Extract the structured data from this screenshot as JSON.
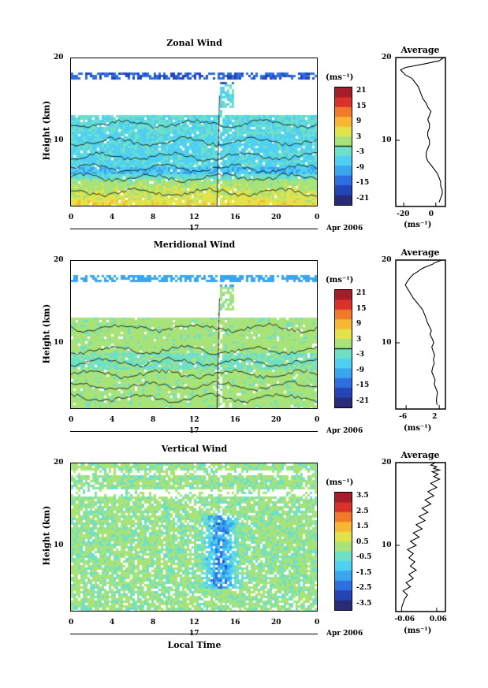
{
  "common": {
    "height_label": "Height (km)",
    "unit_label": "(ms⁻¹)",
    "date_day": "17",
    "date_label": "Apr 2006",
    "x_axis_title": "Local Time",
    "x_ticks": [
      "0",
      "4",
      "8",
      "12",
      "16",
      "20",
      "0"
    ],
    "y_ticks": [
      "20",
      "10"
    ],
    "avg_title": "Average",
    "avg_unit": "(ms⁻¹)"
  },
  "chart_data": [
    {
      "type": "heatmap",
      "title": "Zonal Wind",
      "xlabel": "",
      "ylabel": "Height (km)",
      "ylim": [
        2,
        20
      ],
      "xlim": [
        0,
        24
      ],
      "colorbar_ticks": [
        "21",
        "15",
        "9",
        "3",
        "-3",
        "-9",
        "-15",
        "-21"
      ],
      "colorbar_range": [
        -24,
        24
      ]
    },
    {
      "type": "line",
      "title": "Average",
      "xlabel": "(ms⁻¹)",
      "xticks": [
        "-20",
        "0"
      ],
      "xlim": [
        -25,
        6
      ],
      "ylim": [
        2,
        20
      ],
      "yticks": [
        "20",
        "10"
      ],
      "series": [
        {
          "x": [
            2,
            3,
            4,
            4,
            3,
            3,
            2,
            1,
            -1,
            -3,
            -5,
            -6,
            -6,
            -5,
            -4,
            -4,
            -5,
            -5,
            -4,
            -4,
            -5,
            -4,
            -3,
            -5,
            -6,
            -8,
            -9,
            -10,
            -11,
            -13,
            -15,
            -17,
            -19,
            -20,
            -21,
            -22,
            -19,
            -8,
            2,
            5
          ],
          "y": [
            2.5,
            3,
            3.5,
            4,
            4.5,
            5,
            5.5,
            6,
            6.5,
            7,
            7.5,
            8,
            8.5,
            9,
            9.5,
            10,
            10.5,
            11,
            11.5,
            12,
            12.5,
            13,
            13.5,
            14,
            14.5,
            15,
            15.5,
            16,
            16.5,
            17,
            17.5,
            17.7,
            17.9,
            18.1,
            18.3,
            18.5,
            18.8,
            19.2,
            19.6,
            20
          ]
        }
      ]
    },
    {
      "type": "heatmap",
      "title": "Meridional Wind",
      "xlabel": "",
      "ylabel": "Height (km)",
      "ylim": [
        2,
        20
      ],
      "xlim": [
        0,
        24
      ],
      "colorbar_ticks": [
        "21",
        "15",
        "9",
        "3",
        "-3",
        "-9",
        "-15",
        "-21"
      ],
      "colorbar_range": [
        -24,
        24
      ]
    },
    {
      "type": "line",
      "title": "Average",
      "xlabel": "(ms⁻¹)",
      "xticks": [
        "-6",
        "2"
      ],
      "xlim": [
        -8.5,
        3.5
      ],
      "ylim": [
        2,
        20
      ],
      "yticks": [
        "20",
        "10"
      ],
      "series": [
        {
          "x": [
            1.5,
            1.3,
            1.4,
            1.6,
            1.2,
            0.8,
            1.0,
            0.6,
            0.2,
            0.4,
            0.8,
            0.6,
            0.9,
            0.5,
            0.2,
            0.7,
            0.3,
            -0.2,
            0.1,
            -0.4,
            -0.9,
            -1.2,
            -1.6,
            -2.0,
            -2.8,
            -3.6,
            -4.4,
            -5.0,
            -5.6,
            -6.2,
            -5.6,
            -4.8,
            -4.2,
            -3.2,
            -2.4,
            -1.6,
            -0.6,
            0.4,
            1.0,
            2.6
          ],
          "y": [
            2.5,
            3,
            3.5,
            4,
            4.5,
            5,
            5.5,
            6,
            6.5,
            7,
            7.5,
            8,
            8.5,
            9,
            9.5,
            10,
            10.5,
            11,
            11.5,
            12,
            12.5,
            13,
            13.5,
            14,
            14.5,
            15,
            15.5,
            16,
            16.5,
            17,
            17.5,
            18,
            18.3,
            18.6,
            18.9,
            19.1,
            19.3,
            19.5,
            19.7,
            20
          ]
        }
      ]
    },
    {
      "type": "heatmap",
      "title": "Vertical Wind",
      "xlabel": "Local Time",
      "ylabel": "Height (km)",
      "ylim": [
        2,
        20
      ],
      "xlim": [
        0,
        24
      ],
      "colorbar_ticks": [
        "3.5",
        "2.5",
        "1.5",
        "0.5",
        "-0.5",
        "-1.5",
        "-2.5",
        "-3.5"
      ],
      "colorbar_range": [
        -4,
        4
      ]
    },
    {
      "type": "line",
      "title": "Average",
      "xlabel": "(ms⁻¹)",
      "xticks": [
        "-0.06",
        "0.06"
      ],
      "xlim": [
        -0.08,
        0.09
      ],
      "ylim": [
        2,
        20
      ],
      "yticks": [
        "20",
        "10"
      ],
      "series": [
        {
          "x": [
            -0.06,
            -0.055,
            -0.05,
            -0.04,
            -0.055,
            -0.03,
            -0.045,
            -0.02,
            -0.035,
            -0.01,
            -0.03,
            -0.015,
            -0.035,
            -0.02,
            -0.04,
            -0.01,
            -0.03,
            0.0,
            -0.02,
            0.01,
            -0.01,
            0.02,
            0.0,
            0.03,
            0.01,
            0.04,
            0.02,
            0.05,
            0.03,
            0.06,
            0.04,
            0.07,
            0.05,
            0.065,
            0.045,
            0.07,
            0.05,
            0.06,
            0.04,
            0.055
          ],
          "y": [
            2.5,
            3,
            3.5,
            4,
            4.5,
            5,
            5.5,
            6,
            6.5,
            7,
            7.5,
            8,
            8.5,
            9,
            9.5,
            10,
            10.5,
            11,
            11.5,
            12,
            12.5,
            13,
            13.5,
            14,
            14.5,
            15,
            15.5,
            16,
            16.5,
            17,
            17.5,
            18,
            18.3,
            18.6,
            18.9,
            19.1,
            19.3,
            19.5,
            19.7,
            20
          ]
        }
      ]
    }
  ]
}
